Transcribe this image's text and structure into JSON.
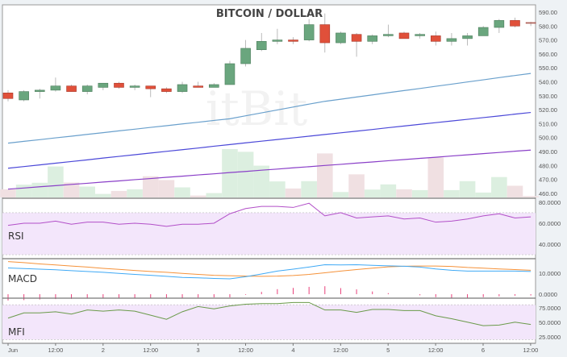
{
  "chart_data": [
    {
      "type": "candlestick",
      "title": "BITCOIN / DOLLAR",
      "watermark": "itBit",
      "ylim": [
        457,
        592
      ],
      "yticks": [
        "590.00",
        "580.00",
        "570.00",
        "560.00",
        "550.00",
        "540.00",
        "530.00",
        "520.00",
        "510.00",
        "500.00",
        "490.00",
        "480.00",
        "470.00",
        "460.00"
      ],
      "open": [
        532,
        527,
        533,
        534,
        537,
        533,
        536,
        539,
        536,
        537,
        535,
        533,
        537,
        536,
        538,
        553,
        563,
        569,
        570,
        570,
        581,
        568,
        574,
        569,
        573,
        575,
        573,
        573,
        569,
        571,
        573,
        579,
        584,
        582.5
      ],
      "close": [
        528,
        533,
        534,
        537,
        533,
        537,
        539,
        536,
        537,
        535,
        533,
        538,
        536,
        538,
        553,
        564,
        569,
        570,
        569,
        581,
        568,
        575,
        569,
        573,
        574,
        571,
        574,
        569,
        571,
        573,
        579,
        584,
        580,
        582
      ],
      "high": [
        534,
        534,
        535,
        543,
        538,
        538,
        539,
        540,
        538,
        537,
        536,
        540,
        540,
        539,
        555,
        570,
        575,
        578,
        572,
        585,
        589,
        576,
        575,
        574,
        581,
        576,
        575,
        576,
        575,
        575,
        580,
        585,
        586,
        583
      ],
      "low": [
        526,
        526,
        528,
        533,
        533,
        531,
        534,
        535,
        534,
        529,
        532,
        532,
        536,
        536,
        538,
        551,
        562,
        567,
        567,
        569,
        561,
        567,
        558,
        567,
        572,
        571,
        571,
        566,
        566,
        566,
        573,
        575,
        579,
        580
      ],
      "volume": [
        30,
        47,
        54,
        114,
        55,
        40,
        13,
        24,
        30,
        78,
        64,
        37,
        7,
        16,
        178,
        168,
        117,
        59,
        33,
        60,
        162,
        20,
        85,
        29,
        48,
        30,
        27,
        147,
        27,
        60,
        18,
        75,
        43,
        5
      ],
      "moving_averages": [
        {
          "color": "#6aa0cc",
          "values": [
            496,
            497.3,
            498.5,
            499.8,
            501,
            502.3,
            503.5,
            504.8,
            506,
            507.3,
            508.5,
            509.8,
            511,
            512.3,
            513.5,
            515.6,
            517.7,
            519.8,
            521.9,
            524,
            526,
            527.5,
            529.1,
            530.6,
            532.2,
            533.7,
            535.2,
            536.8,
            538.3,
            539.9,
            541.4,
            543,
            544.5,
            546
          ]
        },
        {
          "color": "#4b48d8",
          "values": [
            478,
            479.2,
            480.4,
            481.6,
            482.8,
            484,
            485.3,
            486.5,
            487.7,
            488.9,
            490.1,
            491.3,
            492.5,
            493.8,
            495,
            496.2,
            497.4,
            498.6,
            499.8,
            501,
            502.2,
            503.4,
            504.6,
            505.8,
            507.1,
            508.3,
            509.5,
            510.7,
            511.9,
            513.1,
            514.3,
            515.5,
            516.8,
            518
          ]
        },
        {
          "color": "#8a3fc8",
          "values": [
            463,
            463.8,
            464.7,
            465.5,
            466.4,
            467.2,
            468.1,
            468.9,
            469.8,
            470.6,
            471.5,
            472.3,
            473.2,
            474,
            474.9,
            475.7,
            476.6,
            477.4,
            478.3,
            479.1,
            480,
            480.8,
            481.7,
            482.5,
            483.4,
            484.2,
            485.1,
            485.9,
            486.8,
            487.6,
            488.5,
            489.3,
            490.2,
            491
          ]
        }
      ],
      "colors": {
        "up": "#6aa67e",
        "down": "#e0503a",
        "up_volume": "#dcefe0",
        "down_volume": "#f0e0e2"
      }
    },
    {
      "type": "line",
      "label": "RSI",
      "ylim": [
        27,
        83
      ],
      "band": [
        30,
        70
      ],
      "yticks": [
        "80.0000",
        "60.0000",
        "40.0000"
      ],
      "color": "#b24fc8",
      "values": [
        58,
        60,
        60,
        62,
        59,
        61,
        61,
        59,
        60,
        59,
        57,
        59,
        59,
        60,
        69,
        74,
        76,
        76,
        75,
        79,
        67,
        70,
        65,
        66,
        67,
        64,
        65,
        61,
        62,
        64,
        67,
        69,
        65,
        66
      ]
    },
    {
      "type": "line",
      "label": "MACD",
      "ylim": [
        -1.5,
        16.5
      ],
      "yticks": [
        "10.0000",
        "0.0000"
      ],
      "macd": {
        "color": "#3fa9f5",
        "values": [
          12.5,
          12.2,
          11.9,
          11.6,
          11.2,
          10.8,
          10.4,
          9.9,
          9.4,
          9,
          8.5,
          8,
          7.8,
          7.5,
          7.3,
          8.3,
          9.6,
          11,
          11.9,
          12.9,
          14,
          13.9,
          14,
          13.7,
          13.5,
          13.3,
          12.9,
          12,
          11.4,
          11,
          11,
          11,
          11,
          10.8
        ]
      },
      "signal": {
        "color": "#f5923a",
        "values": [
          15.5,
          15,
          14.4,
          13.9,
          13.4,
          12.9,
          12.3,
          11.8,
          11.3,
          10.8,
          10.4,
          9.9,
          9.4,
          9,
          8.8,
          8.6,
          8.5,
          8.6,
          8.9,
          9.4,
          10.2,
          11,
          11.7,
          12.4,
          13,
          13.3,
          13.4,
          13.4,
          13.2,
          12.7,
          12.4,
          12,
          11.7,
          11.4
        ]
      },
      "histogram_color": "#e8407a"
    },
    {
      "type": "line",
      "label": "MFI",
      "ylim": [
        15,
        90
      ],
      "band": [
        20,
        80
      ],
      "yticks": [
        "75.0000",
        "50.0000",
        "25.0000"
      ],
      "color": "#6a9a4a",
      "values": [
        57,
        66,
        66,
        68,
        64,
        71,
        69,
        71,
        69,
        62,
        55,
        68,
        77,
        73,
        78,
        81,
        82,
        82,
        84,
        84,
        71,
        71,
        67,
        72,
        72,
        70,
        70,
        61,
        56,
        50,
        44,
        45,
        50,
        46
      ]
    }
  ],
  "xaxis": {
    "ticks": [
      "Jun",
      "12:00",
      "2",
      "12:00",
      "3",
      "12:00",
      "4",
      "12:00",
      "5",
      "12:00",
      "6",
      "12:00"
    ]
  }
}
